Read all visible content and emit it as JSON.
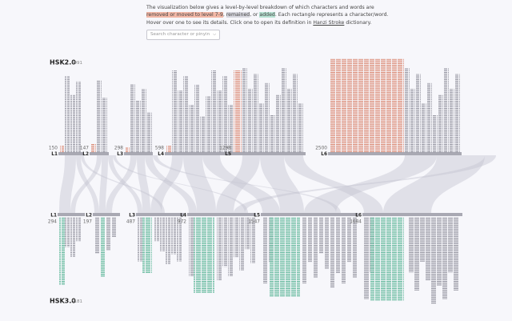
{
  "intro": [
    "The visualization below gives a level-by-level breakdown of which characters and words are",
    "removed or moved to level 7-9",
    ", ",
    "remained",
    ", or ",
    "added",
    ". Each rectangle represents a character/word.",
    "Hover over one to see its details. Click one to open its definition in ",
    "Hanzi Stroke",
    " dictionary."
  ],
  "search_placeholder": "Search character or pinyin",
  "hsk2": {
    "title": "HSK2.0",
    "total": 4991,
    "levels": [
      {
        "label": "L1",
        "count": 150
      },
      {
        "label": "L2",
        "count": 147
      },
      {
        "label": "L3",
        "count": 298
      },
      {
        "label": "L4",
        "count": 598
      },
      {
        "label": "L5",
        "count": 1298
      },
      {
        "label": "L6",
        "count": 2500
      }
    ]
  },
  "hsk3": {
    "title": "HSK3.0",
    "total": 5181,
    "levels": [
      {
        "label": "L1",
        "count": 294
      },
      {
        "label": "L2",
        "count": 197
      },
      {
        "label": "L3",
        "count": 487
      },
      {
        "label": "L4",
        "count": 972
      },
      {
        "label": "L5",
        "count": 1547
      },
      {
        "label": "L6",
        "count": 1684
      }
    ]
  }
}
